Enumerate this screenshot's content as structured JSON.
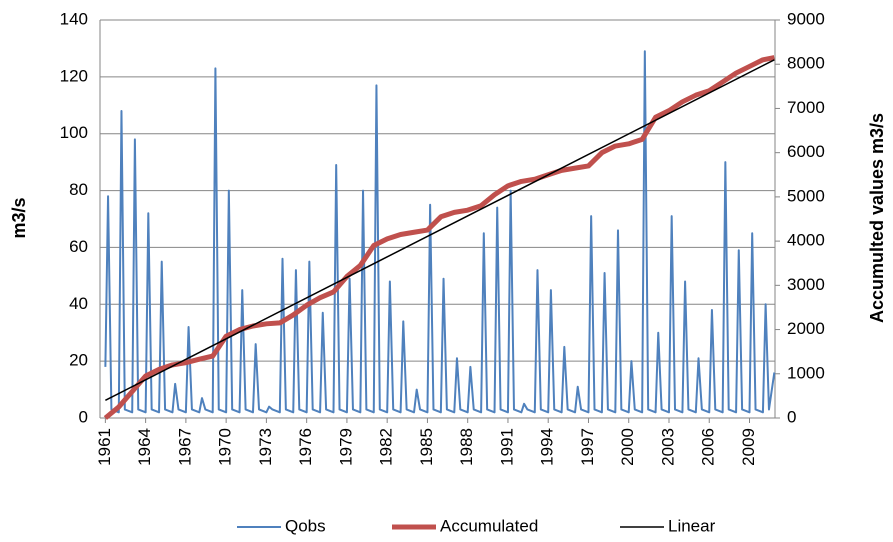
{
  "chart_data": {
    "type": "line",
    "y_label": "m3/s",
    "y2_label": "Accumulted values m3/s",
    "xlim": [
      1960.6,
      2010.9
    ],
    "xticks": [
      1961,
      1964,
      1967,
      1970,
      1973,
      1976,
      1979,
      1982,
      1985,
      1988,
      1991,
      1994,
      1997,
      2000,
      2003,
      2006,
      2009
    ],
    "ylim": [
      0,
      140
    ],
    "yticks": [
      0,
      20,
      40,
      60,
      80,
      100,
      120,
      140
    ],
    "y2lim": [
      0,
      9000
    ],
    "y2ticks": [
      0,
      1000,
      2000,
      3000,
      4000,
      5000,
      6000,
      7000,
      8000,
      9000
    ],
    "grid": true,
    "legend": "bottom",
    "series": [
      {
        "name": "Qobs",
        "color": "#4f81bd",
        "x": [
          1961,
          1961.2,
          1961.45,
          1962,
          1962.2,
          1962.45,
          1963,
          1963.2,
          1963.45,
          1964,
          1964.2,
          1964.45,
          1965,
          1965.2,
          1965.45,
          1966,
          1966.2,
          1966.45,
          1967,
          1967.2,
          1967.45,
          1968,
          1968.2,
          1968.45,
          1969,
          1969.2,
          1969.45,
          1970,
          1970.2,
          1970.45,
          1971,
          1971.2,
          1971.45,
          1972,
          1972.2,
          1972.45,
          1973,
          1973.2,
          1973.45,
          1974,
          1974.2,
          1974.45,
          1975,
          1975.2,
          1975.45,
          1976,
          1976.2,
          1976.45,
          1977,
          1977.2,
          1977.45,
          1978,
          1978.2,
          1978.45,
          1979,
          1979.2,
          1979.45,
          1980,
          1980.2,
          1980.45,
          1981,
          1981.2,
          1981.45,
          1982,
          1982.2,
          1982.45,
          1983,
          1983.2,
          1983.45,
          1984,
          1984.2,
          1984.45,
          1985,
          1985.2,
          1985.45,
          1986,
          1986.2,
          1986.45,
          1987,
          1987.2,
          1987.45,
          1988,
          1988.2,
          1988.45,
          1989,
          1989.2,
          1989.45,
          1990,
          1990.2,
          1990.45,
          1991,
          1991.2,
          1991.45,
          1992,
          1992.2,
          1992.45,
          1993,
          1993.2,
          1993.45,
          1994,
          1994.2,
          1994.45,
          1995,
          1995.2,
          1995.45,
          1996,
          1996.2,
          1996.45,
          1997,
          1997.2,
          1997.45,
          1998,
          1998.2,
          1998.45,
          1999,
          1999.2,
          1999.45,
          2000,
          2000.2,
          2000.45,
          2001,
          2001.2,
          2001.45,
          2002,
          2002.2,
          2002.45,
          2003,
          2003.2,
          2003.45,
          2004,
          2004.2,
          2004.45,
          2005,
          2005.2,
          2005.45,
          2006,
          2006.2,
          2006.45,
          2007,
          2007.2,
          2007.45,
          2008,
          2008.2,
          2008.45,
          2009,
          2009.2,
          2009.45,
          2010,
          2010.2,
          2010.45,
          2010.85
        ],
        "values": [
          18,
          78,
          3,
          2,
          108,
          3,
          2,
          98,
          3,
          2,
          72,
          3,
          2,
          55,
          3,
          2,
          12,
          3,
          2,
          32,
          3,
          2,
          7,
          3,
          2,
          123,
          3,
          2,
          80,
          3,
          2,
          45,
          3,
          2,
          26,
          3,
          2,
          4,
          3,
          2,
          56,
          3,
          2,
          52,
          3,
          2,
          55,
          3,
          2,
          37,
          3,
          2,
          89,
          3,
          2,
          49,
          3,
          2,
          80,
          3,
          2,
          117,
          3,
          2,
          48,
          3,
          2,
          34,
          3,
          2,
          10,
          3,
          2,
          75,
          3,
          2,
          49,
          3,
          2,
          21,
          3,
          2,
          18,
          3,
          2,
          65,
          3,
          2,
          74,
          3,
          2,
          80,
          3,
          2,
          5,
          3,
          2,
          52,
          3,
          2,
          45,
          3,
          2,
          25,
          3,
          2,
          11,
          3,
          2,
          71,
          3,
          2,
          51,
          3,
          2,
          66,
          3,
          2,
          20,
          3,
          2,
          129,
          3,
          2,
          30,
          3,
          2,
          71,
          3,
          2,
          48,
          3,
          2,
          21,
          3,
          2,
          38,
          3,
          2,
          90,
          3,
          2,
          59,
          3,
          2,
          65,
          3,
          2,
          40,
          3,
          16
        ]
      },
      {
        "name": "Accumulated",
        "color": "#c0504d",
        "axis": "y2",
        "x": [
          1961,
          1962,
          1963,
          1964,
          1965,
          1966,
          1967,
          1968,
          1969,
          1970,
          1971,
          1972,
          1973,
          1974,
          1975,
          1976,
          1977,
          1978,
          1979,
          1980,
          1981,
          1982,
          1983,
          1984,
          1985,
          1986,
          1987,
          1988,
          1989,
          1990,
          1991,
          1992,
          1993,
          1994,
          1995,
          1996,
          1997,
          1998,
          1999,
          2000,
          2001,
          2002,
          2003,
          2004,
          2005,
          2006,
          2007,
          2008,
          2009,
          2010,
          2010.85
        ],
        "values": [
          0,
          250,
          600,
          950,
          1100,
          1200,
          1250,
          1330,
          1400,
          1850,
          2000,
          2080,
          2130,
          2150,
          2330,
          2550,
          2720,
          2850,
          3200,
          3450,
          3900,
          4050,
          4150,
          4200,
          4250,
          4550,
          4650,
          4700,
          4800,
          5050,
          5250,
          5350,
          5400,
          5500,
          5600,
          5650,
          5700,
          6000,
          6150,
          6200,
          6300,
          6800,
          6950,
          7150,
          7300,
          7400,
          7600,
          7800,
          7950,
          8100,
          8150
        ]
      },
      {
        "name": "Linear",
        "color": "#000000",
        "axis": "y2",
        "x": [
          1961,
          2010.85
        ],
        "values": [
          400,
          8100
        ]
      }
    ]
  }
}
